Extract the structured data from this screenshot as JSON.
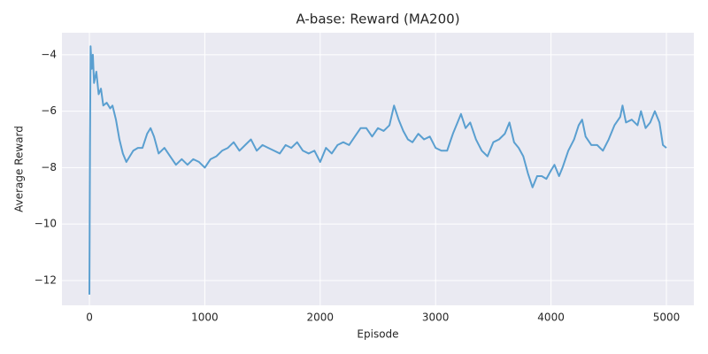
{
  "chart_data": {
    "type": "line",
    "title": "A-base: Reward (MA200)",
    "x_label": "Episode",
    "y_label": "Average Reward",
    "color": "#5a9fd0",
    "grid": true,
    "xlim": [
      -238,
      5238
    ],
    "ylim": [
      -12.88,
      -3.22
    ],
    "xticks": [
      0,
      1000,
      2000,
      3000,
      4000,
      5000
    ],
    "yticks": [
      {
        "value": -12,
        "label": "−12"
      },
      {
        "value": -10,
        "label": "−10"
      },
      {
        "value": -8,
        "label": "−8"
      },
      {
        "value": -6,
        "label": "−6"
      },
      {
        "value": -4,
        "label": "−4"
      }
    ],
    "x": [
      0,
      5,
      10,
      20,
      30,
      40,
      60,
      80,
      100,
      120,
      150,
      180,
      200,
      230,
      260,
      290,
      320,
      350,
      380,
      420,
      460,
      500,
      530,
      560,
      600,
      650,
      700,
      750,
      800,
      850,
      900,
      950,
      1000,
      1050,
      1100,
      1150,
      1200,
      1250,
      1300,
      1350,
      1400,
      1450,
      1500,
      1550,
      1600,
      1650,
      1700,
      1750,
      1800,
      1850,
      1900,
      1950,
      2000,
      2050,
      2100,
      2150,
      2200,
      2250,
      2300,
      2350,
      2400,
      2450,
      2500,
      2550,
      2600,
      2640,
      2680,
      2720,
      2760,
      2800,
      2850,
      2900,
      2950,
      3000,
      3050,
      3100,
      3150,
      3200,
      3220,
      3260,
      3300,
      3350,
      3400,
      3450,
      3500,
      3550,
      3600,
      3640,
      3680,
      3720,
      3760,
      3800,
      3840,
      3880,
      3920,
      3960,
      4000,
      4030,
      4070,
      4100,
      4150,
      4200,
      4240,
      4270,
      4300,
      4350,
      4400,
      4450,
      4500,
      4550,
      4600,
      4620,
      4650,
      4700,
      4750,
      4780,
      4820,
      4860,
      4900,
      4940,
      4970,
      5000
    ],
    "values": [
      -12.5,
      -7.3,
      -3.7,
      -4.5,
      -4.0,
      -5.0,
      -4.6,
      -5.4,
      -5.2,
      -5.8,
      -5.7,
      -5.9,
      -5.8,
      -6.3,
      -7.0,
      -7.5,
      -7.8,
      -7.6,
      -7.4,
      -7.3,
      -7.3,
      -6.8,
      -6.6,
      -6.9,
      -7.5,
      -7.3,
      -7.6,
      -7.9,
      -7.7,
      -7.9,
      -7.7,
      -7.8,
      -8.0,
      -7.7,
      -7.6,
      -7.4,
      -7.3,
      -7.1,
      -7.4,
      -7.2,
      -7.0,
      -7.4,
      -7.2,
      -7.3,
      -7.4,
      -7.5,
      -7.2,
      -7.3,
      -7.1,
      -7.4,
      -7.5,
      -7.4,
      -7.8,
      -7.3,
      -7.5,
      -7.2,
      -7.1,
      -7.2,
      -6.9,
      -6.6,
      -6.6,
      -6.9,
      -6.6,
      -6.7,
      -6.5,
      -5.8,
      -6.3,
      -6.7,
      -7.0,
      -7.1,
      -6.8,
      -7.0,
      -6.9,
      -7.3,
      -7.4,
      -7.4,
      -6.8,
      -6.3,
      -6.1,
      -6.6,
      -6.4,
      -7.0,
      -7.4,
      -7.6,
      -7.1,
      -7.0,
      -6.8,
      -6.4,
      -7.1,
      -7.3,
      -7.6,
      -8.2,
      -8.7,
      -8.3,
      -8.3,
      -8.4,
      -8.1,
      -7.9,
      -8.3,
      -8.0,
      -7.4,
      -7.0,
      -6.5,
      -6.3,
      -6.9,
      -7.2,
      -7.2,
      -7.4,
      -7.0,
      -6.5,
      -6.2,
      -5.8,
      -6.4,
      -6.3,
      -6.5,
      -6.0,
      -6.6,
      -6.4,
      -6.0,
      -6.4,
      -7.2,
      -7.3
    ]
  }
}
